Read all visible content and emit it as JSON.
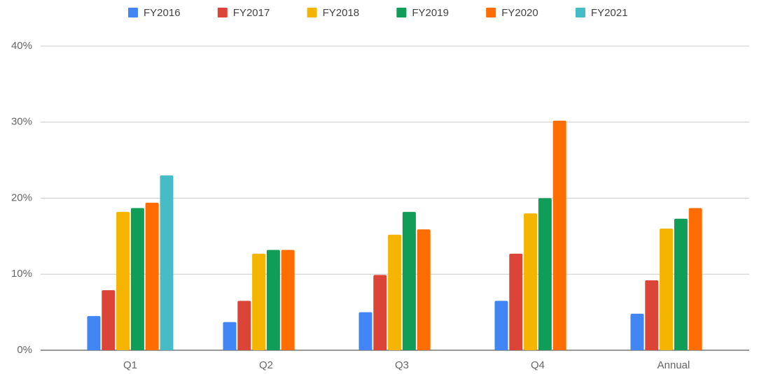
{
  "chart_data": {
    "type": "bar",
    "categories": [
      "Q1",
      "Q2",
      "Q3",
      "Q4",
      "Annual"
    ],
    "series": [
      {
        "name": "FY2016",
        "color": "#4285f4",
        "values": [
          4.5,
          3.7,
          5.0,
          6.5,
          4.8
        ]
      },
      {
        "name": "FY2017",
        "color": "#db4437",
        "values": [
          7.9,
          6.5,
          9.9,
          12.7,
          9.2
        ]
      },
      {
        "name": "FY2018",
        "color": "#f4b400",
        "values": [
          18.2,
          12.7,
          15.2,
          18.0,
          16.0
        ]
      },
      {
        "name": "FY2019",
        "color": "#0f9d58",
        "values": [
          18.7,
          13.2,
          18.2,
          20.0,
          17.3
        ]
      },
      {
        "name": "FY2020",
        "color": "#ff6d00",
        "values": [
          19.4,
          13.2,
          15.9,
          30.2,
          18.7
        ]
      },
      {
        "name": "FY2021",
        "color": "#46bdc6",
        "values": [
          23.0,
          null,
          null,
          null,
          null
        ]
      }
    ],
    "ylim": [
      0,
      40
    ],
    "yticks": [
      {
        "value": 0,
        "label": "0%"
      },
      {
        "value": 10,
        "label": "10%"
      },
      {
        "value": 20,
        "label": "20%"
      },
      {
        "value": 30,
        "label": "30%"
      },
      {
        "value": 40,
        "label": "40%"
      }
    ],
    "grid": true,
    "legend": "top"
  }
}
